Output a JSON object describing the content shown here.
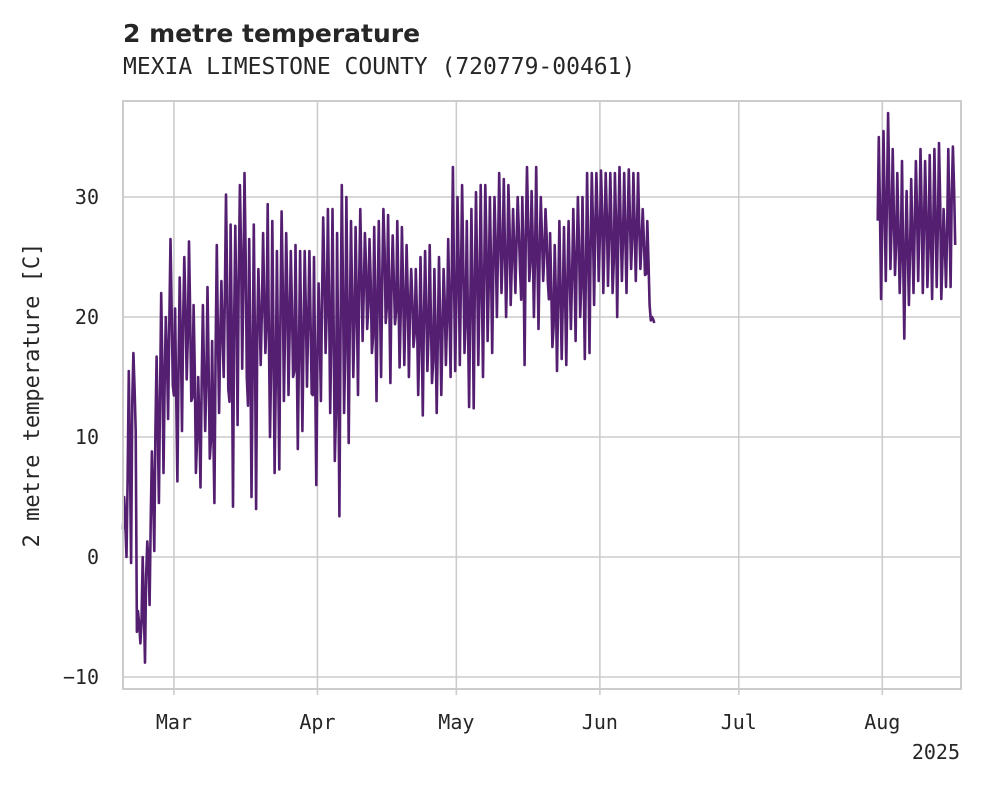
{
  "chart_data": {
    "type": "line",
    "title": "2 metre temperature",
    "subtitle": "MEXIA LIMESTONE COUNTY (720779-00461)",
    "ylabel": "2 metre temperature [C]",
    "xlabel": "",
    "x_range": [
      "2025-02-18",
      "2025-08-18"
    ],
    "ylim": [
      -11,
      38
    ],
    "x_ticks": [
      {
        "date": "2025-03-01",
        "label": "Mar"
      },
      {
        "date": "2025-04-01",
        "label": "Apr"
      },
      {
        "date": "2025-05-01",
        "label": "May"
      },
      {
        "date": "2025-06-01",
        "label": "Jun"
      },
      {
        "date": "2025-07-01",
        "label": "Jul"
      },
      {
        "date": "2025-08-01",
        "label": "Aug"
      }
    ],
    "x_offset_label": "2025",
    "y_ticks": [
      -10,
      0,
      10,
      20,
      30
    ],
    "grid": true,
    "line_color": "#541f71",
    "series": [
      {
        "segments": [
          {
            "x": [
              "2025-02-18",
              "2025-02-19",
              "2025-02-20",
              "2025-02-21",
              "2025-02-22",
              "2025-02-23",
              "2025-02-24",
              "2025-02-25",
              "2025-02-26",
              "2025-02-27",
              "2025-02-28",
              "2025-03-01",
              "2025-03-02",
              "2025-03-03",
              "2025-03-04",
              "2025-03-05",
              "2025-03-06",
              "2025-03-07",
              "2025-03-08",
              "2025-03-09",
              "2025-03-10",
              "2025-03-11",
              "2025-03-12",
              "2025-03-13",
              "2025-03-14",
              "2025-03-15",
              "2025-03-16",
              "2025-03-17",
              "2025-03-18",
              "2025-03-19",
              "2025-03-20",
              "2025-03-21",
              "2025-03-22",
              "2025-03-23",
              "2025-03-24",
              "2025-03-25",
              "2025-03-26",
              "2025-03-27",
              "2025-03-28",
              "2025-03-29",
              "2025-03-30",
              "2025-03-31",
              "2025-04-01",
              "2025-04-02",
              "2025-04-03",
              "2025-04-04",
              "2025-04-05",
              "2025-04-06",
              "2025-04-07",
              "2025-04-08",
              "2025-04-09",
              "2025-04-10",
              "2025-04-11",
              "2025-04-12",
              "2025-04-13",
              "2025-04-14",
              "2025-04-15",
              "2025-04-16",
              "2025-04-17",
              "2025-04-18",
              "2025-04-19",
              "2025-04-20",
              "2025-04-21",
              "2025-04-22",
              "2025-04-23",
              "2025-04-24",
              "2025-04-25",
              "2025-04-26",
              "2025-04-27",
              "2025-04-28",
              "2025-04-29",
              "2025-04-30",
              "2025-05-01",
              "2025-05-02",
              "2025-05-03",
              "2025-05-04",
              "2025-05-05",
              "2025-05-06",
              "2025-05-07",
              "2025-05-08",
              "2025-05-09",
              "2025-05-10",
              "2025-05-11",
              "2025-05-12",
              "2025-05-13",
              "2025-05-14",
              "2025-05-15",
              "2025-05-16",
              "2025-05-17",
              "2025-05-18",
              "2025-05-19",
              "2025-05-20",
              "2025-05-21",
              "2025-05-22",
              "2025-05-23",
              "2025-05-24",
              "2025-05-25",
              "2025-05-26",
              "2025-05-27",
              "2025-05-28",
              "2025-05-29",
              "2025-05-30",
              "2025-05-31",
              "2025-06-01",
              "2025-06-02",
              "2025-06-03",
              "2025-06-04",
              "2025-06-05",
              "2025-06-06",
              "2025-06-07",
              "2025-06-08",
              "2025-06-09",
              "2025-06-10",
              "2025-06-11",
              "2025-06-12"
            ],
            "min": [
              0,
              -0.5,
              10.5,
              -7.2,
              -8.8,
              -4,
              0.5,
              4.5,
              7,
              11.5,
              14.3,
              6.3,
              10.5,
              14.8,
              13,
              7,
              5.8,
              10.5,
              8.2,
              4.5,
              12,
              15,
              14,
              4.2,
              11,
              15.7,
              15,
              5,
              4,
              16,
              17,
              10,
              7,
              7.3,
              13,
              13.5,
              15,
              9,
              10.5,
              14.2,
              13.6,
              6,
              13,
              17,
              12,
              8,
              3.4,
              12,
              9.5,
              15,
              13.5,
              18,
              19,
              17,
              13,
              15,
              19.5,
              14.5,
              19.4,
              15.8,
              16,
              15,
              17.5,
              13.5,
              11.8,
              15.5,
              14.5,
              12,
              13.5,
              16,
              15,
              15.5,
              16,
              17,
              12.5,
              12.4,
              16,
              15,
              18,
              17,
              20,
              22,
              20,
              21,
              22,
              24,
              16,
              23,
              20,
              19,
              23,
              23,
              17.5,
              15.5,
              16.5,
              16,
              19,
              18,
              20,
              16.5,
              17,
              21,
              23,
              22,
              22.6,
              22,
              20,
              23,
              22,
              24,
              23,
              24,
              23.5,
              21,
              19.5
            ],
            "max": [
              5,
              15.5,
              17,
              -4.5,
              0,
              1.3,
              8.8,
              16.7,
              22,
              20,
              26.5,
              20.7,
              23.3,
              25,
              26.3,
              21,
              15,
              21,
              22.5,
              18,
              26,
              23,
              30.2,
              27.7,
              27.6,
              31,
              32,
              26.5,
              27.7,
              24,
              27,
              29.4,
              28,
              25.5,
              28.8,
              27,
              25.5,
              26,
              25.5,
              25.5,
              25.5,
              25,
              22.8,
              28.3,
              29,
              29,
              27,
              31,
              30,
              28,
              27.5,
              29,
              27,
              26.5,
              27.5,
              28,
              29,
              28.5,
              26.8,
              28,
              27.5,
              26,
              24,
              24,
              25,
              25.5,
              26,
              24,
              25,
              24,
              26.5,
              32.5,
              30,
              31,
              28,
              29,
              30.4,
              31,
              31,
              30,
              30,
              32,
              31.5,
              31,
              29,
              30,
              30,
              32.5,
              30.5,
              32.5,
              30,
              29,
              27,
              26,
              28,
              27.5,
              28,
              29,
              30,
              30,
              32,
              32,
              32,
              32.2,
              32,
              32,
              32,
              32.5,
              32,
              32.3,
              32,
              32,
              29,
              28,
              20
            ]
          },
          {
            "x": [
              "2025-07-31",
              "2025-08-01",
              "2025-08-02",
              "2025-08-03",
              "2025-08-04",
              "2025-08-05",
              "2025-08-06",
              "2025-08-07",
              "2025-08-08",
              "2025-08-09",
              "2025-08-10",
              "2025-08-11",
              "2025-08-12",
              "2025-08-13",
              "2025-08-14",
              "2025-08-15",
              "2025-08-16"
            ],
            "min": [
              21.5,
              23,
              24,
              23.5,
              22,
              18.2,
              21,
              22,
              23,
              22,
              22.5,
              21.5,
              22.5,
              21.5,
              22.5,
              22.5,
              26
            ],
            "max": [
              35,
              35.5,
              37,
              34,
              32,
              33,
              30.5,
              31.5,
              33,
              34,
              33,
              33.5,
              34,
              34.5,
              29,
              34,
              34.2
            ]
          }
        ]
      }
    ]
  }
}
